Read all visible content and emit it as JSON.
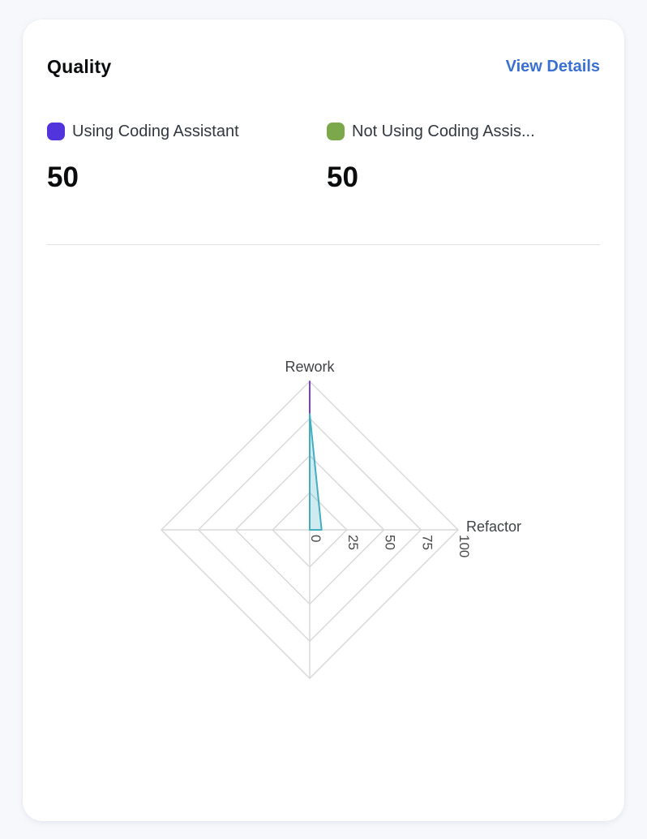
{
  "card": {
    "title": "Quality",
    "view_details_label": "View Details"
  },
  "legend": {
    "items": [
      {
        "label": "Using Coding Assistant",
        "value": "50",
        "swatch_color": "#5134db"
      },
      {
        "label": "Not Using Coding Assis...",
        "value": "50",
        "swatch_color": "#7ba84b"
      }
    ]
  },
  "chart_data": {
    "type": "radar",
    "title": "Quality",
    "axes": [
      "Rework",
      "Refactor",
      "",
      ""
    ],
    "tick_labels": [
      "0",
      "25",
      "50",
      "75",
      "100"
    ],
    "max": 100,
    "grid": true,
    "legend_position": "top",
    "series": [
      {
        "name": "Using Coding Assistant",
        "values": [
          100,
          0,
          0,
          0
        ],
        "stroke": "#7a3fd0",
        "fill": "rgba(122,63,208,0.12)"
      },
      {
        "name": "Not Using Coding Assis...",
        "values": [
          78,
          8,
          0,
          0
        ],
        "stroke": "#42aec0",
        "fill": "rgba(66,174,192,0.25)"
      }
    ],
    "grid_color": "#d9d9d9",
    "tick_color": "#4a4a4a",
    "axis_label_color": "#3f4246"
  },
  "colors": {
    "page_bg": "#f6f8fc",
    "card_bg": "#ffffff",
    "link": "#3b70d2",
    "divider": "#dfe1ea",
    "title": "#0b0c0e",
    "legend_text": "#33383f",
    "value_text": "#0b0c0e"
  }
}
